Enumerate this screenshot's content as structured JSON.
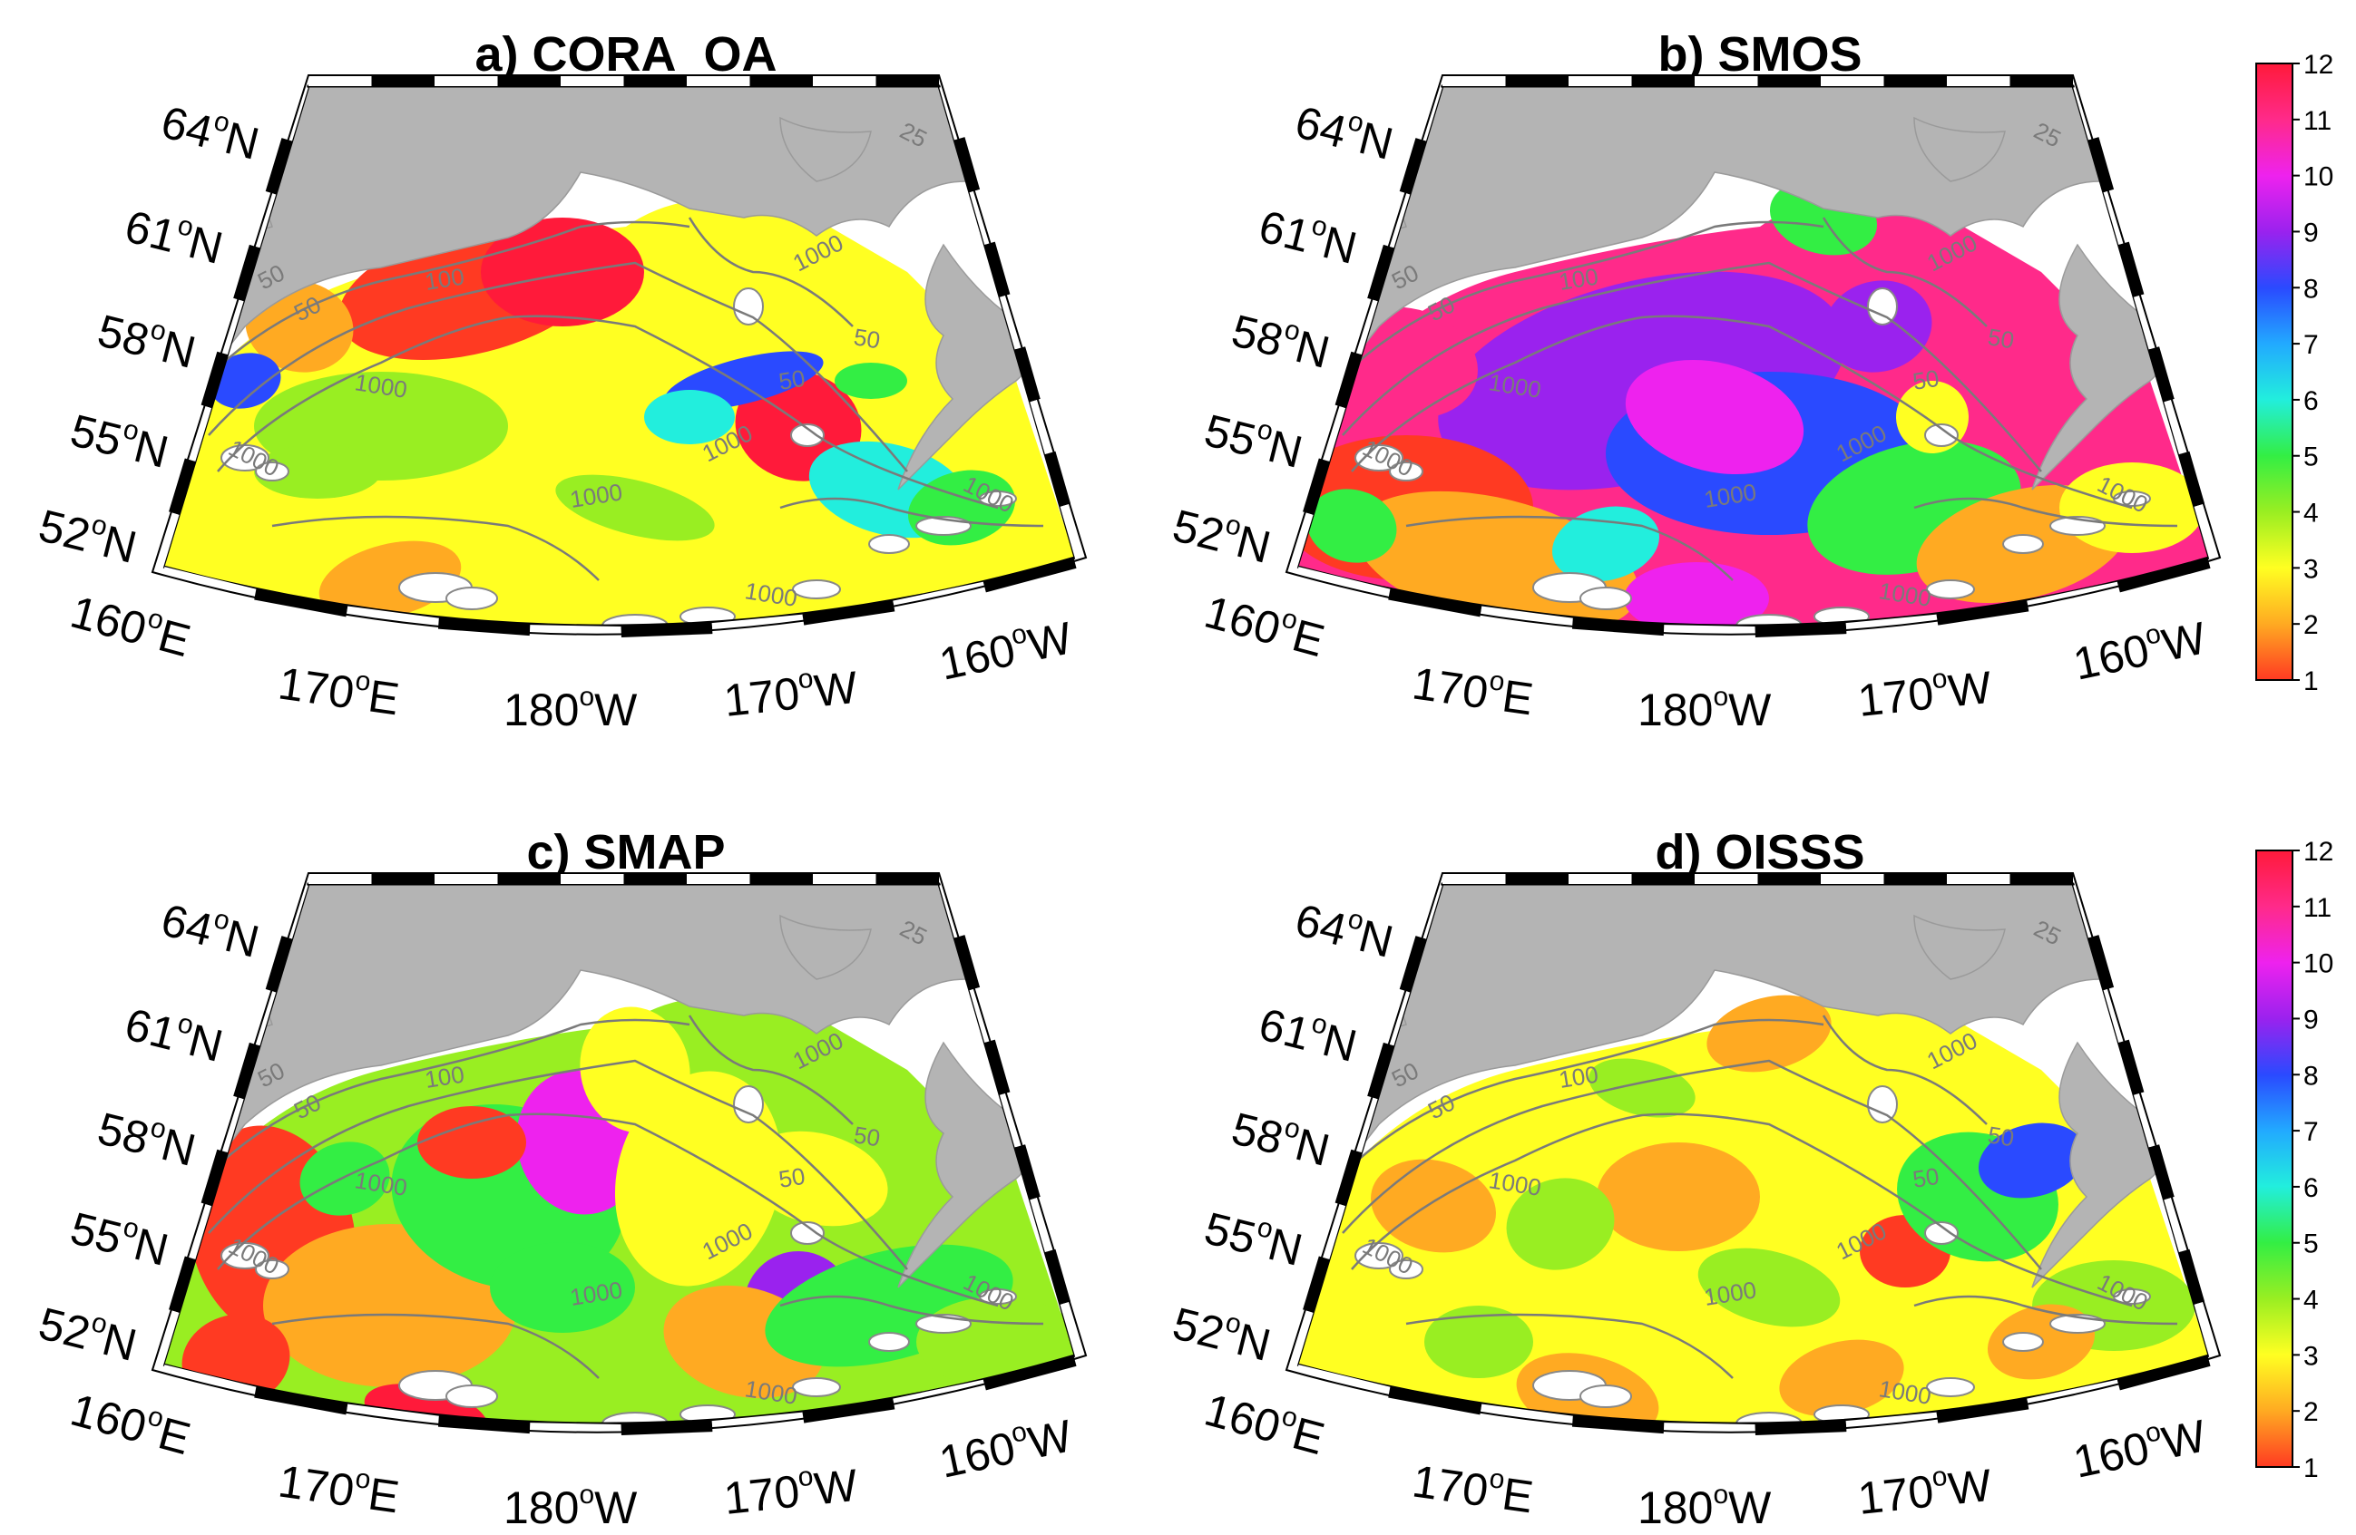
{
  "panels": [
    {
      "id": "a",
      "title": "a) CORA_OA",
      "scheme": "cora"
    },
    {
      "id": "b",
      "title": "b) SMOS",
      "scheme": "smos"
    },
    {
      "id": "c",
      "title": "c) SMAP",
      "scheme": "smap"
    },
    {
      "id": "d",
      "title": "d) OISSS",
      "scheme": "oisss"
    }
  ],
  "latitude_labels": [
    {
      "value": "64",
      "hemi": "N"
    },
    {
      "value": "61",
      "hemi": "N"
    },
    {
      "value": "58",
      "hemi": "N"
    },
    {
      "value": "55",
      "hemi": "N"
    },
    {
      "value": "52",
      "hemi": "N"
    }
  ],
  "longitude_labels": [
    {
      "value": "160",
      "hemi": "E"
    },
    {
      "value": "170",
      "hemi": "E"
    },
    {
      "value": "180",
      "hemi": "W"
    },
    {
      "value": "170",
      "hemi": "W"
    },
    {
      "value": "160",
      "hemi": "W"
    }
  ],
  "contour_labels": [
    "50",
    "100",
    "1000",
    "1000",
    "1000",
    "50",
    "50",
    "25",
    "1000",
    "1000",
    "1000",
    "1000",
    "50"
  ],
  "colorbar": {
    "ticks": [
      "12",
      "11",
      "10",
      "9",
      "8",
      "7",
      "6",
      "5",
      "4",
      "3",
      "2",
      "1"
    ],
    "colors": [
      "#ff1a3a",
      "#ff2a8a",
      "#ee22ee",
      "#9a22ee",
      "#2a4aff",
      "#22aaff",
      "#22eedd",
      "#33ee44",
      "#99ee22",
      "#ffff22",
      "#ffaa22",
      "#ff3a22"
    ],
    "land_color": "#b4b4b4"
  }
}
